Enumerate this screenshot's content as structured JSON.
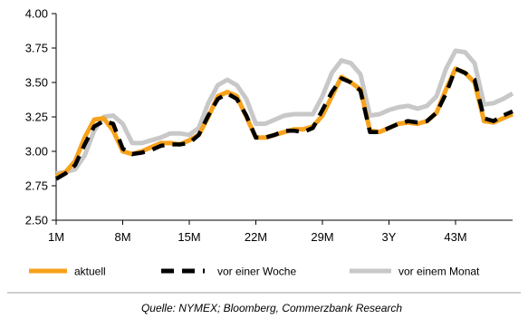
{
  "chart_data": {
    "type": "line",
    "x": [
      "1M",
      "2M",
      "3M",
      "4M",
      "5M",
      "6M",
      "7M",
      "8M",
      "9M",
      "10M",
      "11M",
      "12M",
      "13M",
      "14M",
      "15M",
      "16M",
      "17M",
      "18M",
      "19M",
      "20M",
      "21M",
      "22M",
      "23M",
      "24M",
      "25M",
      "26M",
      "27M",
      "28M",
      "29M",
      "30M",
      "31M",
      "32M",
      "33M",
      "34M",
      "35M",
      "3Y",
      "37M",
      "38M",
      "39M",
      "40M",
      "41M",
      "42M",
      "43M",
      "44M",
      "45M",
      "46M",
      "47M",
      "48M",
      "49M"
    ],
    "x_tick_labels": [
      "1M",
      "8M",
      "15M",
      "22M",
      "29M",
      "3Y",
      "43M"
    ],
    "ylim": [
      2.5,
      4.0
    ],
    "y_ticks": [
      "2.50",
      "2.75",
      "3.00",
      "3.25",
      "3.50",
      "3.75",
      "4.00"
    ],
    "grid": false,
    "legend_position": "bottom",
    "series": [
      {
        "name": "aktuell",
        "color": "#F7A21C",
        "style": "solid",
        "values": [
          2.82,
          2.85,
          2.93,
          3.1,
          3.23,
          3.24,
          3.15,
          3.0,
          2.98,
          3.0,
          3.03,
          3.06,
          3.06,
          3.05,
          3.08,
          3.12,
          3.25,
          3.4,
          3.43,
          3.4,
          3.25,
          3.1,
          3.1,
          3.12,
          3.14,
          3.16,
          3.16,
          3.18,
          3.26,
          3.4,
          3.54,
          3.5,
          3.45,
          3.15,
          3.14,
          3.17,
          3.2,
          3.21,
          3.2,
          3.22,
          3.28,
          3.45,
          3.6,
          3.57,
          3.5,
          3.22,
          3.21,
          3.24,
          3.27
        ]
      },
      {
        "name": "vor einer Woche",
        "color": "#000000",
        "style": "dashed",
        "values": [
          2.8,
          2.84,
          2.9,
          3.05,
          3.18,
          3.22,
          3.2,
          3.02,
          2.98,
          2.99,
          3.01,
          3.04,
          3.05,
          3.05,
          3.06,
          3.12,
          3.26,
          3.38,
          3.42,
          3.38,
          3.26,
          3.1,
          3.1,
          3.12,
          3.15,
          3.15,
          3.14,
          3.17,
          3.3,
          3.43,
          3.53,
          3.5,
          3.44,
          3.14,
          3.14,
          3.17,
          3.2,
          3.22,
          3.21,
          3.22,
          3.28,
          3.42,
          3.6,
          3.57,
          3.52,
          3.24,
          3.22,
          3.26,
          3.29
        ]
      },
      {
        "name": "vor einem Monat",
        "color": "#C8C8C8",
        "style": "solid",
        "values": [
          2.84,
          2.85,
          2.87,
          2.97,
          3.15,
          3.25,
          3.26,
          3.2,
          3.06,
          3.06,
          3.08,
          3.1,
          3.13,
          3.13,
          3.12,
          3.17,
          3.35,
          3.48,
          3.52,
          3.48,
          3.38,
          3.2,
          3.2,
          3.23,
          3.26,
          3.27,
          3.27,
          3.27,
          3.4,
          3.57,
          3.66,
          3.64,
          3.56,
          3.26,
          3.27,
          3.3,
          3.32,
          3.33,
          3.31,
          3.33,
          3.4,
          3.6,
          3.73,
          3.72,
          3.64,
          3.34,
          3.35,
          3.38,
          3.42
        ]
      }
    ],
    "source": "Quelle: NYMEX; Bloomberg, Commerzbank Research"
  }
}
